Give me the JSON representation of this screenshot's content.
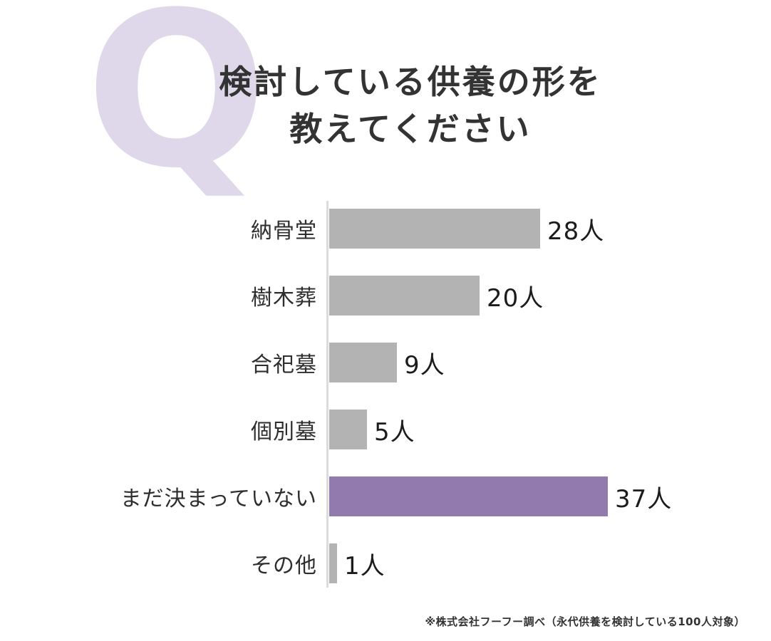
{
  "header": {
    "q_mark": "Q",
    "title_line1": "検討している供養の形を",
    "title_line2": "教えてください"
  },
  "chart_data": {
    "type": "bar",
    "orientation": "horizontal",
    "title": "検討している供養の形を教えてください",
    "categories": [
      "納骨堂",
      "樹木葬",
      "合祀墓",
      "個別墓",
      "まだ決まっていない",
      "その他"
    ],
    "values": [
      28,
      20,
      9,
      5,
      37,
      1
    ],
    "unit": "人",
    "value_labels": [
      "28人",
      "20人",
      "9人",
      "5人",
      "37人",
      "1人"
    ],
    "xlim": [
      0,
      37
    ],
    "grid": false,
    "legend": false,
    "bar_color": "#b3b3b3",
    "highlight_index": 4,
    "highlight_color": "#937aae",
    "axis_color": "#dcdcdc"
  },
  "colors": {
    "background": "#ffffff",
    "q_watermark": "#ded8ea",
    "title_text": "#333333",
    "label_text": "#2e2e2e",
    "value_text": "#1c1c1c"
  },
  "footer": {
    "note": "※株式会社フーフー調べ（永代供養を検討している100人対象）"
  }
}
